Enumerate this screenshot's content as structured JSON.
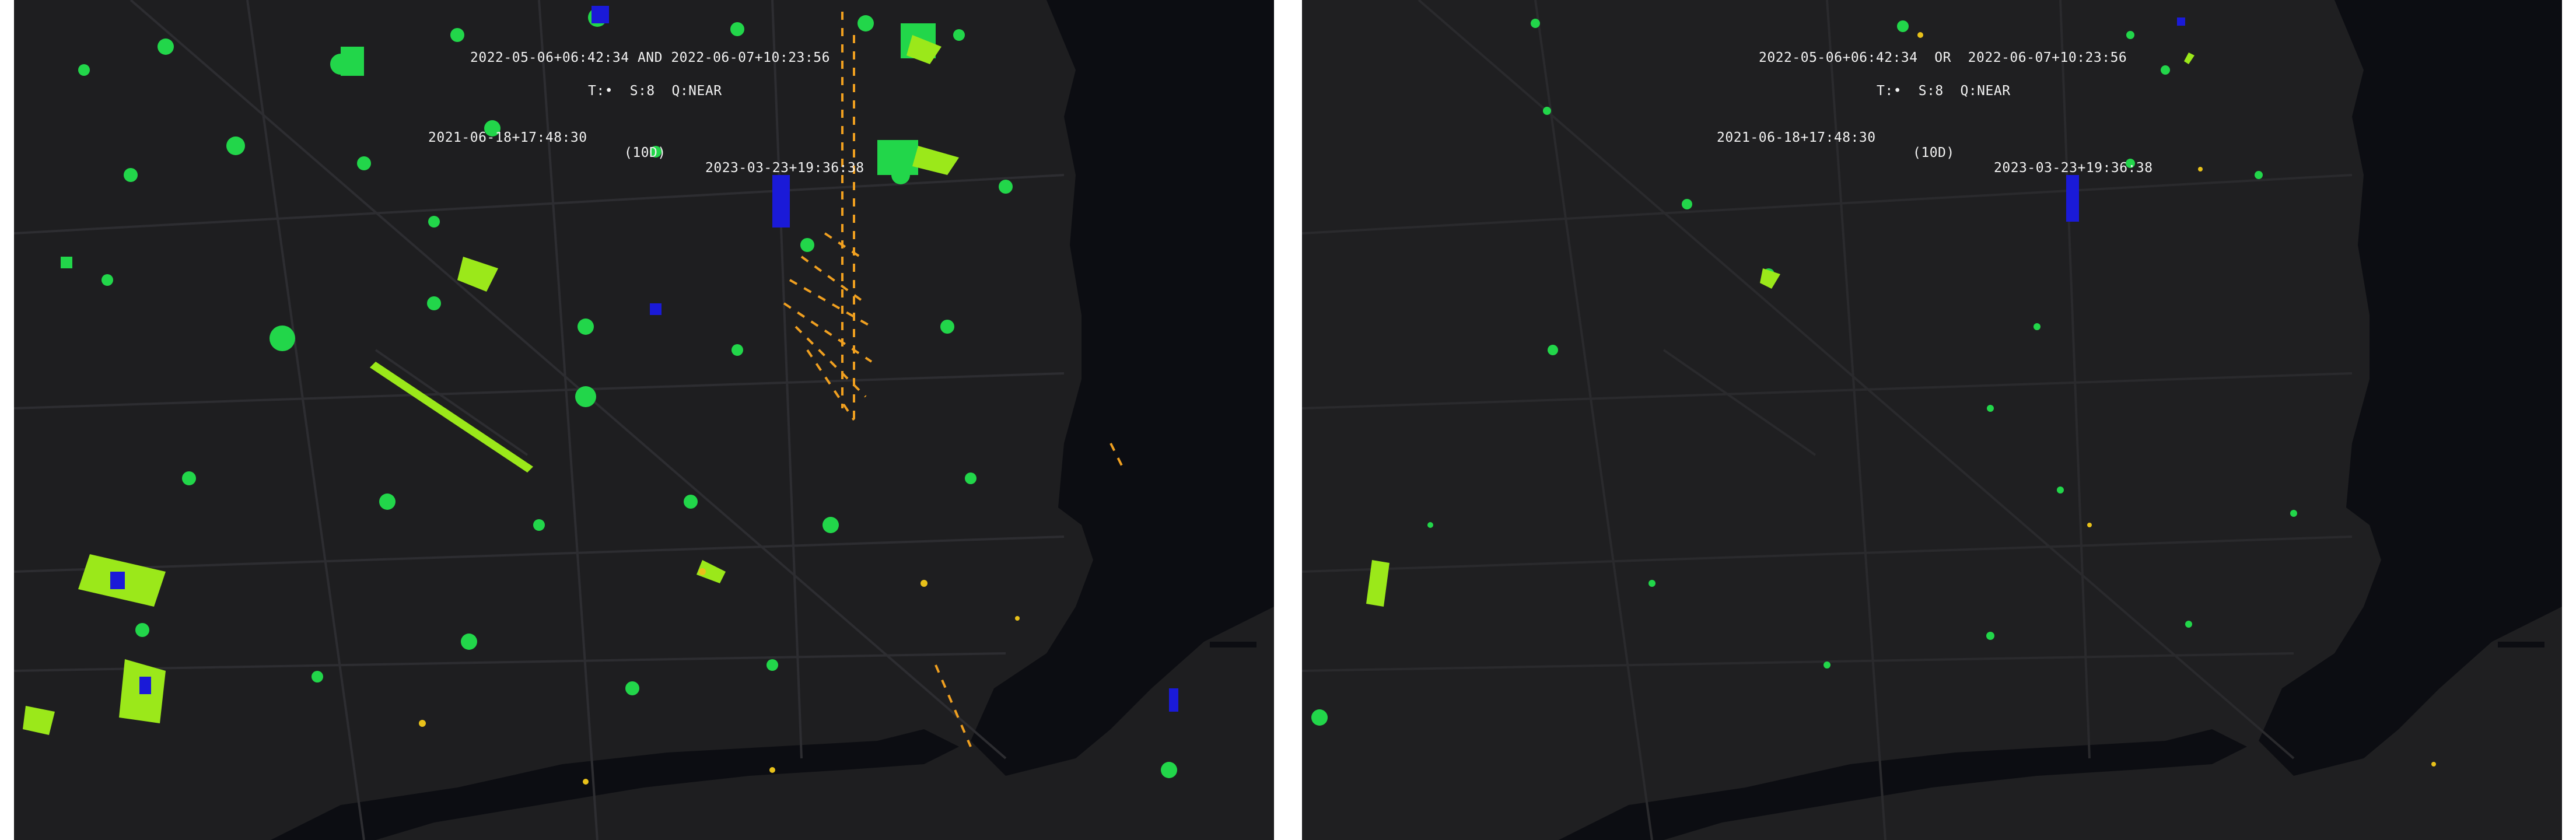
{
  "colors": {
    "land": "#1e1e20",
    "water": "#0c0d12",
    "roads": "#2b2b2e",
    "green_bright": "#22d64a",
    "green_lime": "#9be81a",
    "yellow": "#e8c11a",
    "orange": "#f0a020",
    "blue": "#1a1ad8",
    "text": "#f2f2f2"
  },
  "panels": [
    {
      "query": "2022-05-06+06:42:34 AND 2022-06-07+10:23:56",
      "params": "T:•  S:8  Q:NEAR",
      "start": "2021-06-18+17:48:30",
      "span": "(10D)",
      "end": "2023-03-23+19:36:38"
    },
    {
      "query": "2022-05-06+06:42:34  OR  2022-06-07+10:23:56",
      "params": "T:•  S:8  Q:NEAR",
      "start": "2021-06-18+17:48:30",
      "span": "(10D)",
      "end": "2023-03-23+19:36:38"
    }
  ]
}
